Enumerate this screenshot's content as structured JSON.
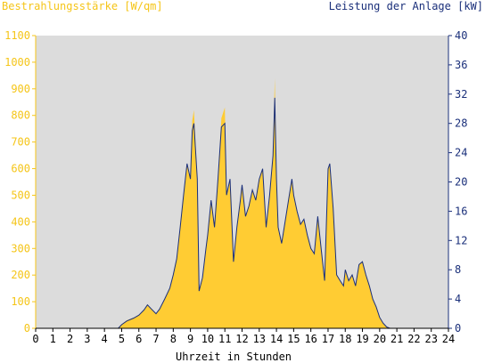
{
  "chart_data": {
    "type": "area",
    "title_left": "Bestrahlungsstärke [W/qm]",
    "title_right": "Leistung der Anlage [kW]",
    "xlabel": "Uhrzeit in Stunden",
    "xlim": [
      0,
      24
    ],
    "ylim_left": [
      0,
      1100
    ],
    "ylim_right": [
      0,
      40
    ],
    "x_ticks": [
      "0",
      "1",
      "2",
      "3",
      "4",
      "5",
      "6",
      "7",
      "8",
      "9",
      "10",
      "11",
      "12",
      "13",
      "14",
      "15",
      "16",
      "17",
      "18",
      "19",
      "20",
      "21",
      "22",
      "23",
      "24"
    ],
    "y_left_ticks": [
      "0",
      "100",
      "200",
      "300",
      "400",
      "500",
      "600",
      "700",
      "800",
      "900",
      "1000",
      "1100"
    ],
    "y_right_ticks": [
      "0",
      "4",
      "8",
      "12",
      "16",
      "20",
      "24",
      "28",
      "32",
      "36",
      "40"
    ],
    "plot_background": "#dcdcdc",
    "series": [
      {
        "name": "Bestrahlungsstärke",
        "axis": "left",
        "color": "#ffcc33",
        "x": [
          0,
          4.8,
          5.0,
          5.3,
          5.7,
          6.0,
          6.3,
          6.5,
          6.7,
          7.0,
          7.2,
          7.5,
          7.8,
          8.0,
          8.2,
          8.4,
          8.6,
          8.8,
          9.0,
          9.1,
          9.2,
          9.4,
          9.5,
          9.7,
          9.9,
          10.0,
          10.2,
          10.4,
          10.6,
          10.8,
          11.0,
          11.1,
          11.3,
          11.5,
          11.7,
          11.9,
          12.0,
          12.2,
          12.4,
          12.6,
          12.8,
          13.0,
          13.2,
          13.4,
          13.6,
          13.8,
          13.9,
          14.0,
          14.1,
          14.3,
          14.5,
          14.7,
          14.9,
          15.0,
          15.2,
          15.4,
          15.6,
          15.8,
          16.0,
          16.2,
          16.4,
          16.6,
          16.8,
          17.0,
          17.1,
          17.3,
          17.5,
          17.7,
          17.9,
          18.0,
          18.2,
          18.4,
          18.6,
          18.8,
          19.0,
          19.2,
          19.4,
          19.6,
          19.8,
          20.0,
          20.2,
          20.4,
          20.6,
          24
        ],
        "values": [
          0,
          0,
          15,
          30,
          40,
          50,
          70,
          90,
          75,
          55,
          70,
          110,
          150,
          200,
          260,
          380,
          500,
          620,
          560,
          780,
          820,
          560,
          140,
          190,
          300,
          350,
          480,
          380,
          560,
          790,
          830,
          500,
          560,
          250,
          380,
          480,
          540,
          420,
          460,
          520,
          480,
          560,
          600,
          380,
          500,
          650,
          940,
          560,
          380,
          320,
          400,
          480,
          560,
          500,
          440,
          390,
          410,
          350,
          300,
          280,
          420,
          300,
          180,
          600,
          620,
          450,
          200,
          180,
          160,
          220,
          180,
          200,
          160,
          240,
          250,
          200,
          160,
          110,
          80,
          40,
          20,
          5,
          0,
          0
        ]
      },
      {
        "name": "Leistung der Anlage",
        "axis": "right",
        "color": "#1a2f7a",
        "x": [
          0,
          4.8,
          5.0,
          5.3,
          5.7,
          6.0,
          6.3,
          6.5,
          6.7,
          7.0,
          7.2,
          7.5,
          7.8,
          8.0,
          8.2,
          8.4,
          8.6,
          8.8,
          9.0,
          9.1,
          9.2,
          9.4,
          9.5,
          9.7,
          9.9,
          10.0,
          10.2,
          10.4,
          10.6,
          10.8,
          11.0,
          11.1,
          11.3,
          11.5,
          11.7,
          11.9,
          12.0,
          12.2,
          12.4,
          12.6,
          12.8,
          13.0,
          13.2,
          13.4,
          13.6,
          13.8,
          13.9,
          14.0,
          14.1,
          14.3,
          14.5,
          14.7,
          14.9,
          15.0,
          15.2,
          15.4,
          15.6,
          15.8,
          16.0,
          16.2,
          16.4,
          16.6,
          16.8,
          17.0,
          17.1,
          17.3,
          17.5,
          17.7,
          17.9,
          18.0,
          18.2,
          18.4,
          18.6,
          18.8,
          19.0,
          19.2,
          19.4,
          19.6,
          19.8,
          20.0,
          20.2,
          20.4,
          20.6,
          24
        ],
        "values": [
          0,
          0,
          0.5,
          1.0,
          1.4,
          1.8,
          2.5,
          3.2,
          2.7,
          2.0,
          2.6,
          4.0,
          5.5,
          7.3,
          9.5,
          13.8,
          18.2,
          22.5,
          20.4,
          27.0,
          28.0,
          20.4,
          5.1,
          6.9,
          10.9,
          12.7,
          17.5,
          13.8,
          20.4,
          27.5,
          28.0,
          18.2,
          20.4,
          9.1,
          13.8,
          17.5,
          19.6,
          15.3,
          16.7,
          18.9,
          17.5,
          20.4,
          21.8,
          13.8,
          18.2,
          23.6,
          31.5,
          20.4,
          13.8,
          11.6,
          14.5,
          17.5,
          20.4,
          18.2,
          16.0,
          14.2,
          14.9,
          12.7,
          10.9,
          10.2,
          15.3,
          10.9,
          6.5,
          21.8,
          22.5,
          16.4,
          7.3,
          6.5,
          5.8,
          8.0,
          6.5,
          7.3,
          5.8,
          8.7,
          9.1,
          7.3,
          5.8,
          4.0,
          2.9,
          1.5,
          0.7,
          0.2,
          0,
          0
        ]
      }
    ]
  }
}
